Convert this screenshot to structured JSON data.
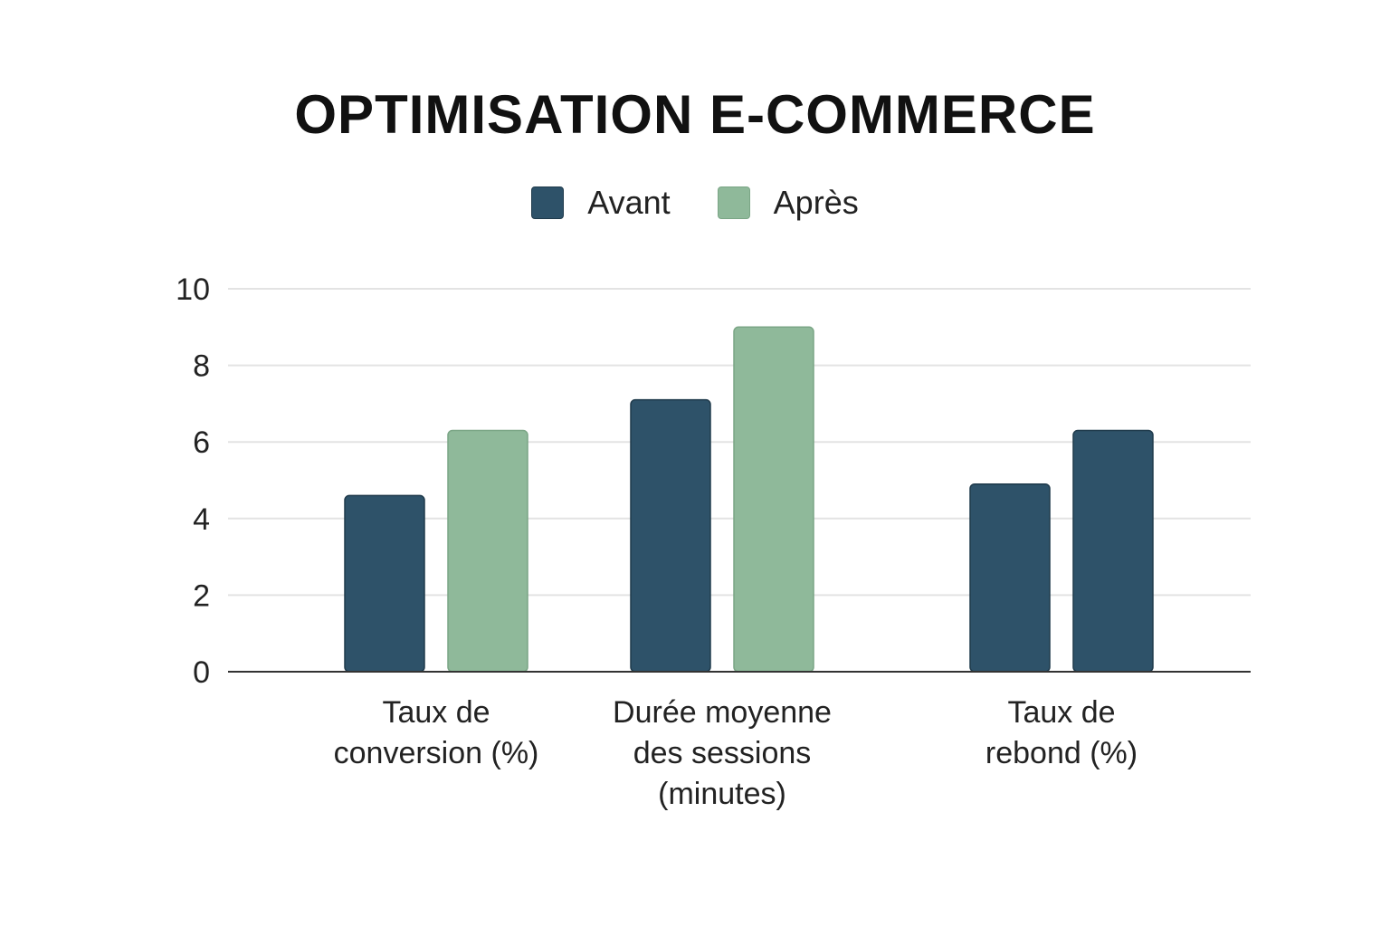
{
  "chart_data": {
    "type": "bar",
    "title": "OPTIMISATION E-COMMERCE",
    "categories": [
      [
        "Taux de",
        "conversion (%)"
      ],
      [
        "Durée moyenne",
        "des sessions",
        "(minutes)"
      ],
      [
        "Taux de",
        "rebond (%)"
      ]
    ],
    "series": [
      {
        "name": "Avant",
        "color": "#2e5269",
        "values": [
          4.6,
          7.1,
          4.9
        ]
      },
      {
        "name": "Après",
        "color": "#8fb99a",
        "values": [
          6.3,
          9.0,
          6.3
        ]
      }
    ],
    "bar_colors": [
      [
        "#2e5269",
        "#8fb99a"
      ],
      [
        "#2e5269",
        "#8fb99a"
      ],
      [
        "#2e5269",
        "#2e5269"
      ]
    ],
    "ylim": [
      0,
      10
    ],
    "yticks": [
      0,
      2,
      4,
      6,
      8,
      10
    ],
    "grid": true,
    "legend": "top-center",
    "xlabel": "",
    "ylabel": ""
  }
}
